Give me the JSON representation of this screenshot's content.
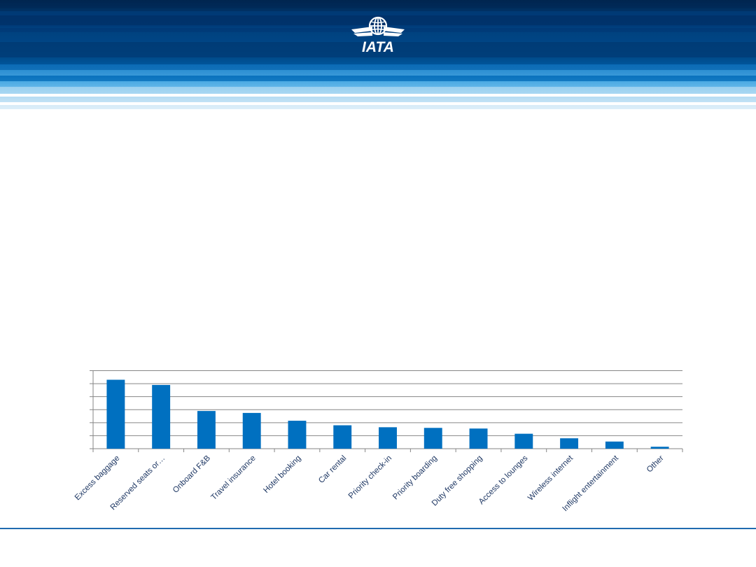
{
  "brand": {
    "logo_text": "IATA",
    "colors": {
      "banner_dark": "#00325f",
      "banner_light": "#7cc4ee",
      "bar": "#0070c0",
      "grid": "#868686",
      "axis_text": "#1f3864",
      "footer_line": "#1f6bb0"
    }
  },
  "chart_data": {
    "type": "bar",
    "categories": [
      "Excess baggage",
      "Reserved seats or…",
      "Onboard F&B",
      "Travel insurance",
      "Hotel booking",
      "Car rental",
      "Priority check-in",
      "Priority boarding",
      "Duty free shopping",
      "Access to lounges",
      "Wireless internet",
      "Inflight entertainment",
      "Other"
    ],
    "values": [
      53,
      49,
      29,
      27.5,
      21.5,
      18,
      16.5,
      16,
      15.5,
      11.5,
      8,
      5.5,
      1.5
    ],
    "ylim": [
      0,
      60
    ],
    "grid": true,
    "title": "",
    "xlabel": "",
    "ylabel": ""
  }
}
